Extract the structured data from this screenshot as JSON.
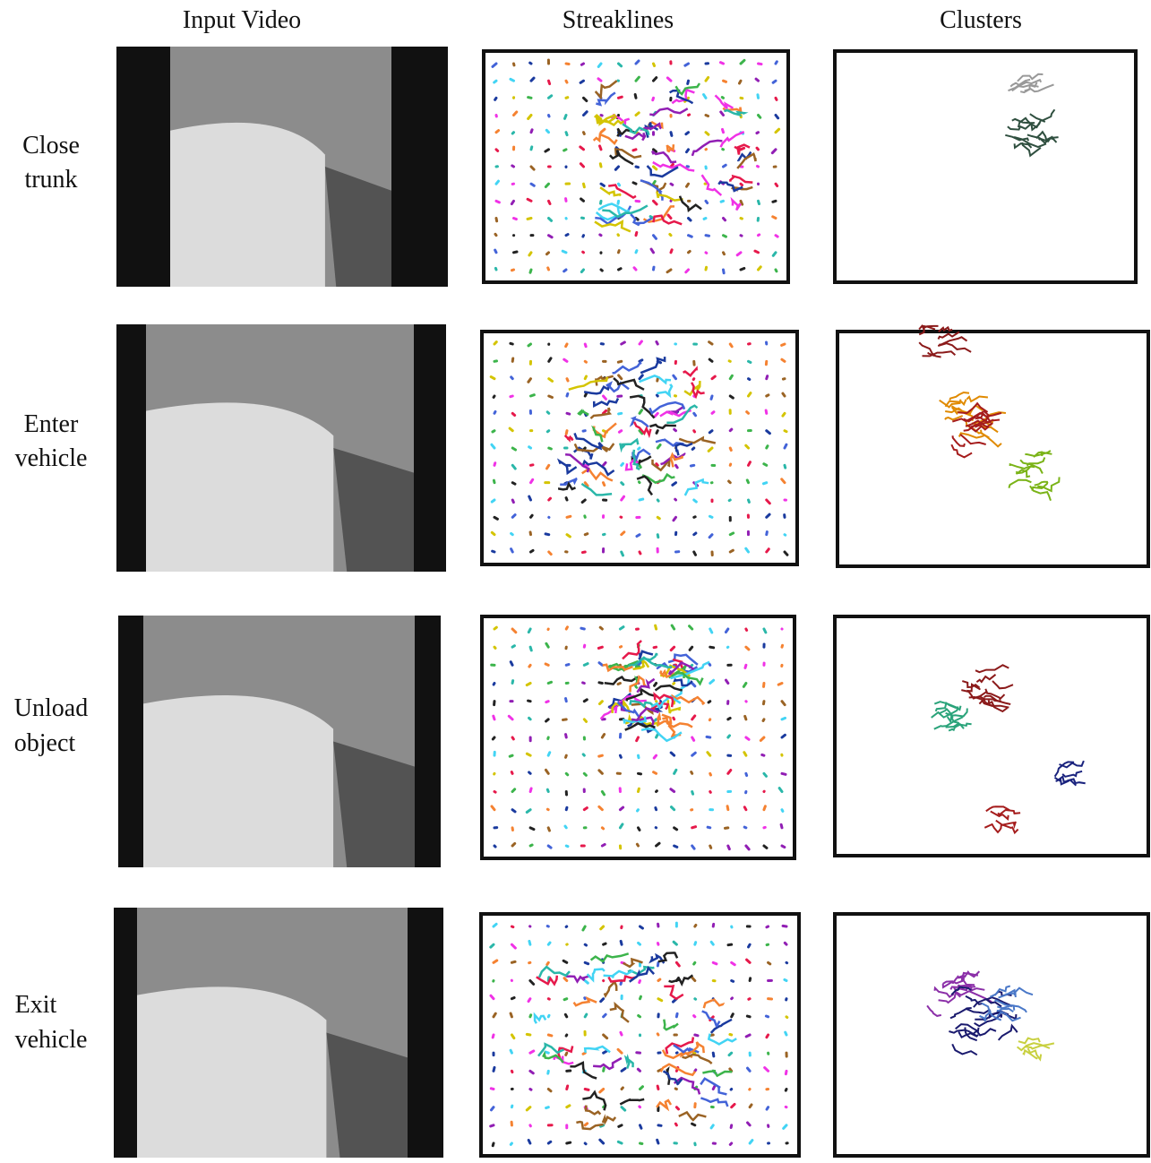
{
  "columns": [
    "Input Video",
    "Streaklines",
    "Clusters"
  ],
  "rows": [
    {
      "label": [
        "Close",
        "trunk"
      ]
    },
    {
      "label": [
        "Enter",
        "vehicle"
      ]
    },
    {
      "label": [
        "Unload",
        "object"
      ]
    },
    {
      "label": [
        "Exit",
        "vehicle"
      ]
    }
  ]
}
